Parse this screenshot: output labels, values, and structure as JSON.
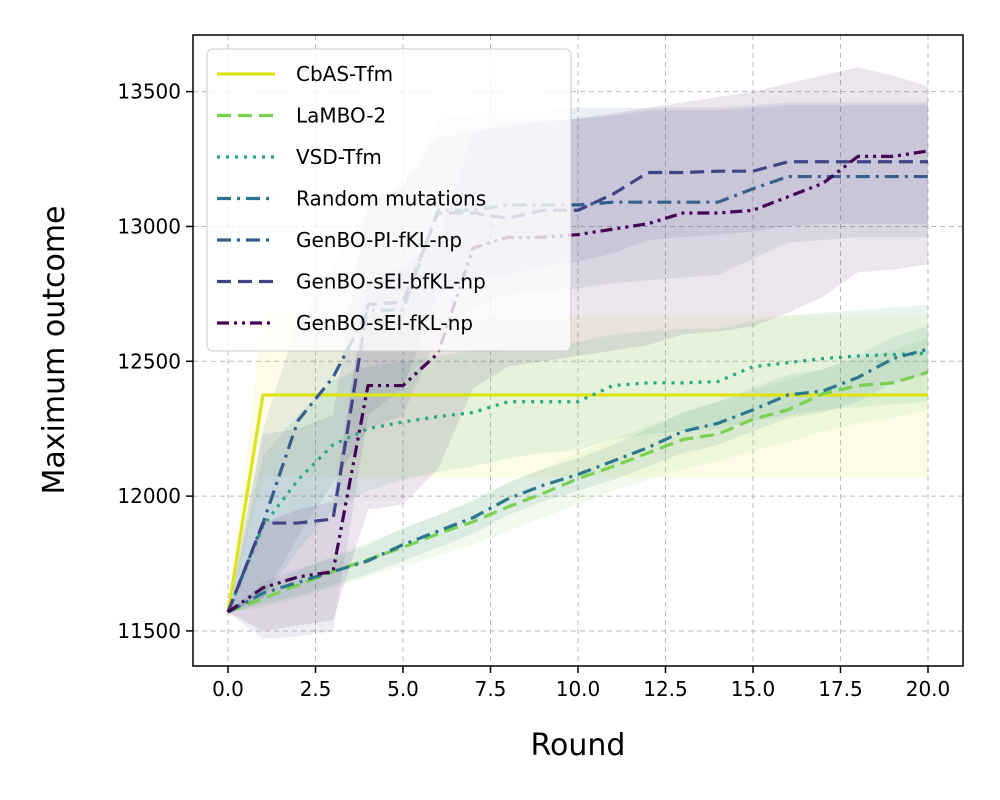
{
  "chart_data": {
    "type": "line",
    "title": "",
    "xlabel": "Round",
    "ylabel": "Maximum outcome",
    "xlim": [
      -1.0,
      21.0
    ],
    "ylim": [
      11370,
      13710
    ],
    "xticks": [
      0.0,
      2.5,
      5.0,
      7.5,
      10.0,
      12.5,
      15.0,
      17.5,
      20.0
    ],
    "xtick_labels": [
      "0.0",
      "2.5",
      "5.0",
      "7.5",
      "10.0",
      "12.5",
      "15.0",
      "17.5",
      "20.0"
    ],
    "yticks": [
      11500,
      12000,
      12500,
      13000,
      13500
    ],
    "ytick_labels": [
      "11500",
      "12000",
      "12500",
      "13000",
      "13500"
    ],
    "grid": true,
    "legend_position": "top-left",
    "x": [
      0,
      1,
      2,
      3,
      4,
      5,
      6,
      7,
      8,
      9,
      10,
      11,
      12,
      13,
      14,
      15,
      16,
      17,
      18,
      19,
      20
    ],
    "series": [
      {
        "name": "CbAS-Tfm",
        "color": "#dde318",
        "dash": "solid",
        "values": [
          11570,
          12375,
          12375,
          12375,
          12375,
          12375,
          12375,
          12375,
          12375,
          12375,
          12375,
          12375,
          12375,
          12375,
          12375,
          12375,
          12375,
          12375,
          12375,
          12375,
          12375
        ],
        "lower": [
          11570,
          12070,
          12070,
          12070,
          12070,
          12070,
          12070,
          12070,
          12070,
          12070,
          12070,
          12070,
          12070,
          12070,
          12070,
          12070,
          12070,
          12070,
          12070,
          12070,
          12070
        ],
        "upper": [
          11570,
          12670,
          12670,
          12670,
          12670,
          12670,
          12670,
          12670,
          12670,
          12670,
          12670,
          12670,
          12670,
          12670,
          12670,
          12670,
          12670,
          12670,
          12670,
          12670,
          12670
        ]
      },
      {
        "name": "LaMBO-2",
        "color": "#7ad151",
        "dash": "dashed",
        "values": [
          11570,
          11620,
          11670,
          11720,
          11765,
          11810,
          11860,
          11905,
          11960,
          12010,
          12065,
          12110,
          12160,
          12210,
          12230,
          12285,
          12320,
          12380,
          12410,
          12420,
          12460
        ],
        "lower": [
          11570,
          11585,
          11620,
          11660,
          11700,
          11740,
          11780,
          11820,
          11870,
          11920,
          11970,
          12020,
          12060,
          12100,
          12130,
          12170,
          12200,
          12240,
          12270,
          12290,
          12320
        ],
        "upper": [
          11570,
          11660,
          11720,
          11780,
          11830,
          11880,
          11930,
          11990,
          12050,
          12100,
          12160,
          12210,
          12260,
          12310,
          12350,
          12390,
          12430,
          12470,
          12510,
          12540,
          12590
        ]
      },
      {
        "name": "VSD-Tfm",
        "color": "#22a884",
        "dash": "dotted",
        "values": [
          11570,
          11890,
          12060,
          12190,
          12250,
          12275,
          12295,
          12310,
          12350,
          12350,
          12350,
          12410,
          12420,
          12420,
          12425,
          12480,
          12495,
          12510,
          12520,
          12525,
          12530
        ],
        "lower": [
          11570,
          11620,
          11800,
          11950,
          12020,
          12060,
          12090,
          12110,
          12140,
          12160,
          12170,
          12210,
          12230,
          12240,
          12250,
          12280,
          12300,
          12320,
          12330,
          12340,
          12350
        ],
        "upper": [
          11570,
          12150,
          12300,
          12430,
          12480,
          12500,
          12520,
          12540,
          12560,
          12570,
          12570,
          12600,
          12610,
          12620,
          12620,
          12650,
          12670,
          12680,
          12690,
          12700,
          12710
        ]
      },
      {
        "name": "Random mutations",
        "color": "#2a788e",
        "dash": "dashdot",
        "values": [
          11570,
          11640,
          11680,
          11720,
          11760,
          11820,
          11870,
          11920,
          11990,
          12040,
          12080,
          12130,
          12180,
          12240,
          12270,
          12320,
          12375,
          12390,
          12440,
          12510,
          12545
        ],
        "lower": [
          11570,
          11600,
          11630,
          11670,
          11710,
          11760,
          11810,
          11860,
          11930,
          11980,
          12020,
          12060,
          12110,
          12160,
          12190,
          12240,
          12290,
          12310,
          12350,
          12420,
          12450
        ],
        "upper": [
          11570,
          11680,
          11730,
          11770,
          11820,
          11880,
          11930,
          11980,
          12050,
          12100,
          12140,
          12190,
          12250,
          12310,
          12350,
          12400,
          12450,
          12470,
          12520,
          12590,
          12630
        ]
      },
      {
        "name": "GenBO-PI-fKL-np",
        "color": "#355f8d",
        "dash": "dashdot",
        "values": [
          11570,
          11900,
          12280,
          12440,
          12690,
          12690,
          13060,
          13060,
          13080,
          13080,
          13080,
          13090,
          13090,
          13090,
          13090,
          13140,
          13185,
          13185,
          13185,
          13185,
          13185
        ],
        "lower": [
          11570,
          11620,
          11850,
          12050,
          12250,
          12300,
          12600,
          12700,
          12750,
          12760,
          12770,
          12790,
          12800,
          12810,
          12820,
          12880,
          12940,
          12950,
          12960,
          12960,
          12960
        ],
        "upper": [
          11570,
          12250,
          12650,
          12850,
          13080,
          13150,
          13400,
          13420,
          13430,
          13430,
          13440,
          13440,
          13440,
          13440,
          13440,
          13450,
          13460,
          13460,
          13460,
          13460,
          13460
        ]
      },
      {
        "name": "GenBO-sEI-bfKL-np",
        "color": "#414487",
        "dash": "dashed",
        "values": [
          11570,
          11900,
          11900,
          11915,
          12710,
          12720,
          13050,
          13050,
          13030,
          13060,
          13060,
          13120,
          13200,
          13200,
          13205,
          13205,
          13240,
          13240,
          13240,
          13240,
          13240
        ],
        "lower": [
          11570,
          11470,
          11480,
          11500,
          12300,
          12400,
          12750,
          12800,
          12820,
          12850,
          12870,
          12900,
          12950,
          12960,
          12970,
          12980,
          13000,
          13010,
          13010,
          13010,
          13010
        ],
        "upper": [
          11570,
          12230,
          12250,
          12300,
          13100,
          13150,
          13330,
          13350,
          13370,
          13390,
          13400,
          13410,
          13430,
          13430,
          13430,
          13440,
          13450,
          13450,
          13450,
          13450,
          13450
        ]
      },
      {
        "name": "GenBO-sEI-fKL-np",
        "color": "#440154",
        "dash": "dashdotdot",
        "values": [
          11570,
          11660,
          11700,
          11720,
          12410,
          12410,
          12530,
          12920,
          12960,
          12960,
          12970,
          12990,
          13010,
          13050,
          13050,
          13060,
          13110,
          13160,
          13260,
          13260,
          13280
        ],
        "lower": [
          11570,
          11500,
          11520,
          11540,
          11950,
          11970,
          12100,
          12400,
          12480,
          12500,
          12520,
          12540,
          12560,
          12600,
          12610,
          12630,
          12680,
          12740,
          12830,
          12840,
          12860
        ],
        "upper": [
          11570,
          11900,
          11950,
          11980,
          12800,
          12850,
          12950,
          13350,
          13380,
          13390,
          13400,
          13420,
          13440,
          13460,
          13480,
          13500,
          13530,
          13560,
          13590,
          13560,
          13520
        ]
      }
    ]
  }
}
